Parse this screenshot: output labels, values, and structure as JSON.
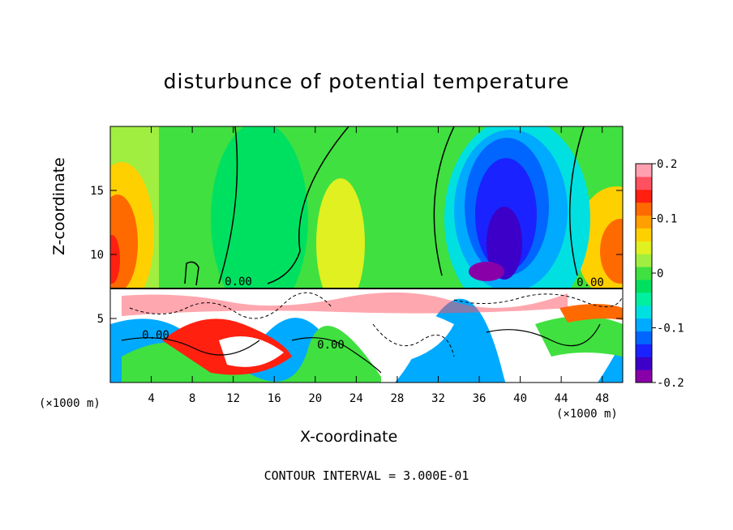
{
  "chart_data": {
    "type": "heatmap",
    "title": "disturbunce of potential temperature",
    "xlabel": "X-coordinate",
    "ylabel": "Z-coordinate",
    "x_unit_label": "(×1000 m)",
    "contour_interval_label": "CONTOUR INTERVAL = 3.000E-01",
    "xlim": [
      0,
      50
    ],
    "ylim": [
      0,
      20
    ],
    "x_ticks": [
      4,
      8,
      12,
      16,
      20,
      24,
      28,
      32,
      36,
      40,
      44,
      48
    ],
    "y_ticks": [
      5,
      10,
      15
    ],
    "colorbar": {
      "range": [
        -0.2,
        0.2
      ],
      "tick_values": [
        0.2,
        0.1,
        0,
        -0.1,
        -0.2
      ],
      "tick_labels": [
        "0.2",
        "0.1",
        "0",
        "-0.1",
        "-0.2"
      ],
      "colors": [
        "#8a00a8",
        "#3d00c8",
        "#1a22ff",
        "#0066ff",
        "#00aaff",
        "#00e0e0",
        "#00f0a0",
        "#00e060",
        "#40e040",
        "#a0ee40",
        "#e0f020",
        "#ffd000",
        "#ffa000",
        "#ff6a00",
        "#ff2010",
        "#ff5060",
        "#ffa0b0"
      ]
    },
    "contour_labels": [
      "0.00",
      "0.00",
      "0.00",
      "0.00"
    ],
    "grid": false,
    "legend": "right"
  }
}
